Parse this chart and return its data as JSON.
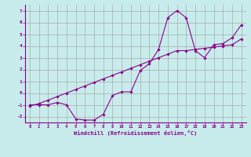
{
  "xlabel": "Windchill (Refroidissement éolien,°C)",
  "x_values": [
    0,
    1,
    2,
    3,
    4,
    5,
    6,
    7,
    8,
    9,
    10,
    11,
    12,
    13,
    14,
    15,
    16,
    17,
    18,
    19,
    20,
    21,
    22,
    23
  ],
  "line1_y": [
    -1.0,
    -1.0,
    -1.0,
    -0.8,
    -1.0,
    -2.2,
    -2.3,
    -2.3,
    -1.8,
    -0.2,
    0.1,
    0.1,
    1.9,
    2.5,
    3.7,
    6.4,
    7.0,
    6.4,
    3.6,
    3.0,
    4.1,
    4.2,
    4.7,
    5.8
  ],
  "line2_y": [
    -1.1,
    -0.9,
    -0.6,
    -0.3,
    0.0,
    0.3,
    0.6,
    0.9,
    1.2,
    1.5,
    1.8,
    2.1,
    2.4,
    2.7,
    3.0,
    3.3,
    3.6,
    3.6,
    3.7,
    3.8,
    3.9,
    4.0,
    4.1,
    4.6
  ],
  "line_color": "#8B008B",
  "bg_color": "#c8ecec",
  "grid_color": "#aaaaaa",
  "ylim": [
    -2.5,
    7.5
  ],
  "xlim": [
    -0.5,
    23.5
  ],
  "yticks": [
    -2,
    -1,
    0,
    1,
    2,
    3,
    4,
    5,
    6,
    7
  ],
  "xticks": [
    0,
    1,
    2,
    3,
    4,
    5,
    6,
    7,
    8,
    9,
    10,
    11,
    12,
    13,
    14,
    15,
    16,
    17,
    18,
    19,
    20,
    21,
    22,
    23
  ]
}
